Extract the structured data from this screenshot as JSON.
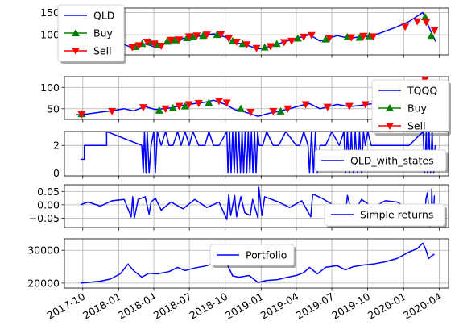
{
  "chart_data": [
    {
      "type": "line",
      "ylim": [
        55,
        160
      ],
      "yticks": [
        100,
        150
      ],
      "grid": true,
      "legend_placement": "top-left",
      "series": [
        {
          "name": "QLD",
          "color": "#0000ff",
          "x": [
            "2017-09-15",
            "2017-10-15",
            "2017-11-15",
            "2017-12-15",
            "2018-01-15",
            "2018-02-08",
            "2018-03-10",
            "2018-04-05",
            "2018-05-15",
            "2018-06-15",
            "2018-07-15",
            "2018-08-15",
            "2018-09-01",
            "2018-10-01",
            "2018-10-25",
            "2018-11-15",
            "2018-12-24",
            "2019-01-15",
            "2019-02-15",
            "2019-03-15",
            "2019-04-15",
            "2019-05-05",
            "2019-06-01",
            "2019-07-15",
            "2019-08-15",
            "2019-09-15",
            "2019-10-15",
            "2019-11-15",
            "2019-12-15",
            "2020-01-15",
            "2020-02-19",
            "2020-03-02",
            "2020-03-12",
            "2020-03-23"
          ],
          "y": [
            58,
            60,
            65,
            70,
            78,
            70,
            80,
            72,
            85,
            92,
            95,
            100,
            102,
            95,
            82,
            80,
            68,
            72,
            80,
            88,
            95,
            100,
            86,
            98,
            92,
            96,
            98,
            108,
            118,
            130,
            150,
            125,
            105,
            85
          ]
        },
        {
          "name": "Buy",
          "color": "#008000",
          "marker": "triangle-up",
          "x": [
            "2017-09-28",
            "2018-02-12",
            "2018-03-02",
            "2018-03-20",
            "2018-04-10",
            "2018-05-05",
            "2018-05-25",
            "2018-06-25",
            "2018-07-10",
            "2018-08-05",
            "2018-09-10",
            "2018-10-20",
            "2018-11-15",
            "2019-01-10",
            "2019-02-10",
            "2019-04-05",
            "2019-06-15",
            "2019-08-10",
            "2019-09-10",
            "2019-10-05",
            "2020-02-25",
            "2020-03-12"
          ],
          "y": [
            60,
            73,
            80,
            84,
            78,
            85,
            88,
            93,
            95,
            98,
            100,
            86,
            80,
            72,
            80,
            92,
            90,
            95,
            94,
            97,
            140,
            98
          ]
        },
        {
          "name": "Sell",
          "color": "#ff0000",
          "marker": "triangle-down",
          "x": [
            "2018-02-05",
            "2018-02-22",
            "2018-03-15",
            "2018-04-02",
            "2018-04-20",
            "2018-05-15",
            "2018-06-05",
            "2018-06-30",
            "2018-07-20",
            "2018-08-15",
            "2018-09-20",
            "2018-10-10",
            "2018-10-30",
            "2018-11-25",
            "2018-12-20",
            "2019-01-25",
            "2019-03-01",
            "2019-03-20",
            "2019-04-20",
            "2019-05-10",
            "2019-06-25",
            "2019-08-20",
            "2019-09-20",
            "2019-10-15",
            "2020-01-05",
            "2020-02-05",
            "2020-02-28",
            "2020-03-20"
          ],
          "y": [
            72,
            76,
            84,
            80,
            75,
            88,
            89,
            96,
            98,
            100,
            101,
            92,
            84,
            78,
            70,
            74,
            83,
            86,
            95,
            99,
            93,
            94,
            97,
            96,
            118,
            130,
            128,
            110
          ]
        }
      ]
    },
    {
      "type": "line",
      "ylim": [
        25,
        125
      ],
      "yticks": [
        50,
        100
      ],
      "grid": true,
      "legend_placement": "right",
      "series": [
        {
          "name": "TQQQ",
          "color": "#0000ff",
          "x": [
            "2017-09-15",
            "2017-10-15",
            "2017-11-15",
            "2017-12-15",
            "2018-01-15",
            "2018-02-08",
            "2018-03-10",
            "2018-04-05",
            "2018-05-15",
            "2018-06-15",
            "2018-07-15",
            "2018-08-15",
            "2018-09-01",
            "2018-10-01",
            "2018-10-25",
            "2018-11-15",
            "2018-12-24",
            "2019-01-15",
            "2019-02-15",
            "2019-03-15",
            "2019-04-15",
            "2019-05-05",
            "2019-06-01",
            "2019-07-15",
            "2019-08-15",
            "2019-09-15",
            "2019-10-15",
            "2019-11-15",
            "2019-12-15",
            "2020-01-15",
            "2020-02-19",
            "2020-03-02",
            "2020-03-12"
          ],
          "y": [
            36,
            38,
            42,
            45,
            50,
            45,
            55,
            48,
            52,
            58,
            62,
            66,
            70,
            60,
            48,
            44,
            32,
            38,
            44,
            50,
            58,
            62,
            50,
            60,
            55,
            58,
            62,
            75,
            85,
            98,
            118,
            95,
            70
          ]
        },
        {
          "name": "Buy",
          "color": "#008000",
          "marker": "triangle-up",
          "x": [
            "2017-09-28",
            "2018-04-15",
            "2018-05-20",
            "2018-06-20",
            "2018-08-20",
            "2018-11-10",
            "2019-02-20"
          ],
          "y": [
            38,
            46,
            52,
            56,
            64,
            50,
            44
          ]
        },
        {
          "name": "Sell",
          "color": "#ff0000",
          "marker": "triangle-down",
          "x": [
            "2017-09-28",
            "2017-12-15",
            "2018-03-05",
            "2018-05-01",
            "2018-06-05",
            "2018-06-30",
            "2018-07-25",
            "2018-09-15",
            "2018-10-05",
            "2018-12-05",
            "2019-02-01",
            "2019-03-10",
            "2019-04-25",
            "2019-06-20",
            "2019-08-15",
            "2019-09-25",
            "2019-10-20",
            "2020-02-25"
          ],
          "y": [
            37,
            44,
            53,
            50,
            56,
            60,
            63,
            68,
            64,
            42,
            44,
            50,
            60,
            54,
            56,
            60,
            60,
            118
          ]
        }
      ]
    },
    {
      "type": "line",
      "ylim": [
        -0.2,
        3.0
      ],
      "yticks": [
        0,
        2
      ],
      "grid": true,
      "legend_placement": "right",
      "series": [
        {
          "name": "QLD_with_states",
          "color": "#0000ff",
          "x": [
            "2017-09-25",
            "2017-10-05",
            "2017-10-05",
            "2017-12-01",
            "2017-12-01",
            "2018-03-01",
            "2018-03-05",
            "2018-03-08",
            "2018-03-12",
            "2018-03-15",
            "2018-03-20",
            "2018-03-25",
            "2018-04-01",
            "2018-04-05",
            "2018-04-10",
            "2018-04-20",
            "2018-05-01",
            "2018-05-10",
            "2018-05-20",
            "2018-06-01",
            "2018-06-10",
            "2018-06-20",
            "2018-07-01",
            "2018-07-10",
            "2018-07-25",
            "2018-08-10",
            "2018-08-20",
            "2018-09-01",
            "2018-09-15",
            "2018-10-05",
            "2018-10-08",
            "2018-10-12",
            "2018-10-16",
            "2018-10-20",
            "2018-10-24",
            "2018-10-28",
            "2018-11-01",
            "2018-11-05",
            "2018-11-09",
            "2018-11-13",
            "2018-11-17",
            "2018-11-21",
            "2018-11-25",
            "2018-11-29",
            "2018-12-03",
            "2018-12-07",
            "2018-12-11",
            "2018-12-15",
            "2018-12-19",
            "2018-12-23",
            "2018-12-27",
            "2019-01-05",
            "2019-01-15",
            "2019-02-01",
            "2019-02-15",
            "2019-03-05",
            "2019-04-01",
            "2019-04-10",
            "2019-04-20",
            "2019-05-01",
            "2019-05-05",
            "2019-05-10",
            "2019-05-15",
            "2019-05-20",
            "2019-05-25",
            "2019-06-01",
            "2019-06-15",
            "2019-07-01",
            "2019-07-20",
            "2019-08-01",
            "2019-08-05",
            "2019-08-10",
            "2019-08-15",
            "2019-08-20",
            "2019-08-25",
            "2019-08-30",
            "2019-09-05",
            "2019-09-10",
            "2019-09-15",
            "2019-09-20",
            "2019-09-25",
            "2019-10-01",
            "2019-10-10",
            "2020-01-15",
            "2020-02-20",
            "2020-02-24",
            "2020-02-28",
            "2020-03-02",
            "2020-03-06",
            "2020-03-10",
            "2020-03-14",
            "2020-03-18",
            "2020-03-22"
          ],
          "y": [
            1,
            1,
            2,
            2,
            3,
            2,
            0,
            3,
            0,
            3,
            0,
            2,
            3,
            0,
            3,
            2,
            3,
            2,
            2,
            3,
            2,
            3,
            2,
            3,
            2,
            2,
            3,
            2,
            2,
            3,
            0,
            3,
            0,
            3,
            0,
            3,
            0,
            3,
            0,
            3,
            0,
            3,
            0,
            3,
            0,
            3,
            0,
            3,
            0,
            3,
            2,
            2,
            3,
            2,
            2,
            3,
            2,
            2,
            3,
            2,
            0,
            3,
            0,
            3,
            0,
            2,
            2,
            3,
            2,
            3,
            0,
            3,
            0,
            3,
            0,
            3,
            0,
            3,
            0,
            3,
            2,
            3,
            2,
            2,
            3,
            0,
            3,
            0,
            3,
            0,
            3,
            0,
            2
          ]
        }
      ]
    },
    {
      "type": "line",
      "ylim": [
        -0.085,
        0.075
      ],
      "yticks": [
        -0.05,
        0.0,
        0.05
      ],
      "ytick_labels": [
        "−0.05",
        "0.00",
        "0.05"
      ],
      "grid": true,
      "legend_placement": "right",
      "series": [
        {
          "name": "Simple returns",
          "color": "#0000ff",
          "x": [
            "2017-09-25",
            "2017-10-15",
            "2017-11-15",
            "2017-12-15",
            "2018-01-15",
            "2018-02-02",
            "2018-02-06",
            "2018-02-10",
            "2018-02-20",
            "2018-03-10",
            "2018-03-20",
            "2018-03-25",
            "2018-04-05",
            "2018-04-20",
            "2018-05-15",
            "2018-06-15",
            "2018-07-15",
            "2018-08-15",
            "2018-09-15",
            "2018-10-05",
            "2018-10-10",
            "2018-10-15",
            "2018-10-25",
            "2018-10-30",
            "2018-11-10",
            "2018-11-20",
            "2018-12-04",
            "2018-12-10",
            "2018-12-24",
            "2018-12-26",
            "2019-01-03",
            "2019-01-10",
            "2019-02-15",
            "2019-03-15",
            "2019-04-15",
            "2019-05-08",
            "2019-05-13",
            "2019-06-05",
            "2019-07-15",
            "2019-08-05",
            "2019-08-10",
            "2019-08-23",
            "2019-09-15",
            "2019-10-15",
            "2019-11-15",
            "2019-12-15",
            "2020-01-15",
            "2020-01-31",
            "2020-02-24",
            "2020-02-27",
            "2020-03-02",
            "2020-03-09",
            "2020-03-12",
            "2020-03-13",
            "2020-03-16",
            "2020-03-20"
          ],
          "y": [
            0.0,
            0.01,
            -0.005,
            0.015,
            0.02,
            -0.045,
            0.03,
            -0.05,
            0.02,
            0.03,
            -0.035,
            0.01,
            0.025,
            -0.02,
            0.01,
            -0.015,
            0.02,
            -0.01,
            0.01,
            -0.055,
            0.04,
            -0.04,
            0.035,
            -0.045,
            0.03,
            -0.03,
            -0.04,
            0.02,
            -0.05,
            0.065,
            -0.04,
            0.03,
            0.01,
            -0.01,
            0.015,
            -0.045,
            0.04,
            0.025,
            -0.01,
            -0.045,
            0.035,
            -0.04,
            0.02,
            -0.01,
            0.015,
            0.01,
            -0.015,
            -0.03,
            -0.06,
            0.02,
            0.045,
            -0.08,
            -0.05,
            0.06,
            -0.075,
            0.035
          ]
        }
      ]
    },
    {
      "type": "line",
      "ylim": [
        18500,
        33500
      ],
      "yticks": [
        20000,
        30000
      ],
      "grid": true,
      "legend_placement": "top-center",
      "series": [
        {
          "name": "Portfolio",
          "color": "#0000ff",
          "x": [
            "2017-09-25",
            "2017-10-20",
            "2017-11-15",
            "2017-12-10",
            "2018-01-05",
            "2018-01-25",
            "2018-02-08",
            "2018-03-01",
            "2018-03-20",
            "2018-04-10",
            "2018-05-10",
            "2018-06-01",
            "2018-06-20",
            "2018-07-15",
            "2018-08-10",
            "2018-08-30",
            "2018-09-15",
            "2018-10-05",
            "2018-10-20",
            "2018-11-05",
            "2018-12-01",
            "2018-12-24",
            "2019-01-15",
            "2019-02-10",
            "2019-03-10",
            "2019-04-01",
            "2019-04-20",
            "2019-05-05",
            "2019-05-25",
            "2019-06-15",
            "2019-07-15",
            "2019-08-05",
            "2019-08-25",
            "2019-09-20",
            "2019-10-15",
            "2019-11-15",
            "2019-12-15",
            "2020-01-15",
            "2020-02-05",
            "2020-02-19",
            "2020-02-26",
            "2020-03-05",
            "2020-03-15",
            "2020-03-20"
          ],
          "y": [
            20000,
            20300,
            20600,
            21200,
            22800,
            25800,
            23800,
            21800,
            23000,
            22800,
            23500,
            24800,
            23800,
            24600,
            25200,
            25800,
            26300,
            26000,
            22200,
            21800,
            22300,
            20200,
            20800,
            21000,
            21800,
            22300,
            23200,
            24800,
            22800,
            24800,
            25300,
            24000,
            25000,
            25500,
            25800,
            26500,
            27500,
            29500,
            30500,
            32200,
            30500,
            27500,
            28500,
            28800
          ]
        }
      ]
    }
  ],
  "x_axis": {
    "type": "date",
    "range": [
      "2017-08-15",
      "2020-04-25"
    ],
    "tick_labels": [
      "2017-10",
      "2018-01",
      "2018-04",
      "2018-07",
      "2018-10",
      "2019-01",
      "2019-04",
      "2019-07",
      "2019-10",
      "2020-01",
      "2020-04"
    ],
    "tick_dates": [
      "2017-10-01",
      "2018-01-01",
      "2018-04-01",
      "2018-07-01",
      "2018-10-01",
      "2019-01-01",
      "2019-04-01",
      "2019-07-01",
      "2019-10-01",
      "2020-01-01",
      "2020-04-01"
    ]
  }
}
